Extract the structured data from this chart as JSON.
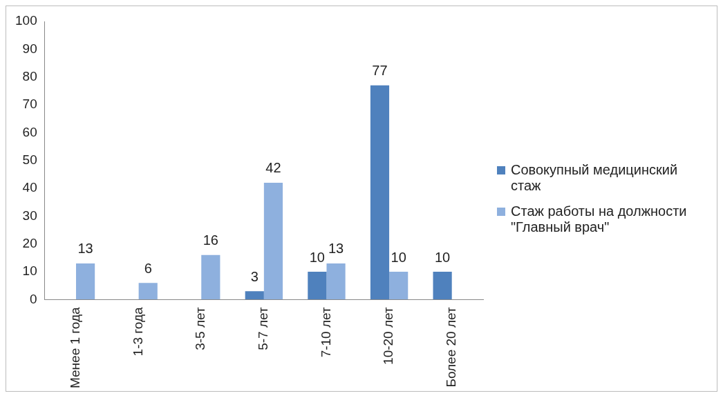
{
  "chart_data": {
    "type": "bar",
    "categories": [
      "Менее 1 года",
      "1-3 года",
      "3-5 лет",
      "5-7 лет",
      "7-10 лет",
      "10-20 лет",
      "Более 20 лет"
    ],
    "series": [
      {
        "name": "Совокупный медицинский стаж",
        "color": "#4f81bd",
        "values": [
          null,
          null,
          null,
          3,
          10,
          77,
          10
        ]
      },
      {
        "name": "Стаж работы на должности \"Главный врач\"",
        "color": "#8eb0de",
        "values": [
          13,
          6,
          16,
          42,
          13,
          10,
          null
        ]
      }
    ],
    "ylim": [
      0,
      100
    ],
    "yticks": [
      0,
      10,
      20,
      30,
      40,
      50,
      60,
      70,
      80,
      90,
      100
    ],
    "grid": false,
    "legend": "right",
    "data_labels": true
  }
}
